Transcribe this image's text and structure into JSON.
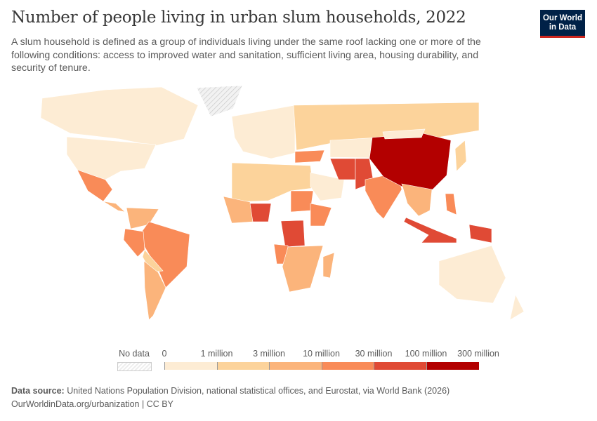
{
  "title": "Number of people living in urban slum households, 2022",
  "subtitle": "A slum household is defined as a group of individuals living under the same roof lacking one or more of the following conditions: access to improved water and sanitation, sufficient living area, housing durability, and security of tenure.",
  "logo": "Our World in Data",
  "legend": {
    "no_data": "No data",
    "ticks": [
      "0",
      "1 million",
      "3 million",
      "10 million",
      "30 million",
      "100 million",
      "300 million"
    ],
    "colors": [
      "#fdecd4",
      "#fcd39b",
      "#fbb47b",
      "#f98b58",
      "#e04a35",
      "#b30000"
    ],
    "no_data_color": "#e8e8e8"
  },
  "footer": {
    "source_label": "Data source:",
    "source": "United Nations Population Division, national statistical offices, and Eurostat, via World Bank (2026)",
    "url": "OurWorldinData.org/urbanization | CC BY"
  },
  "chart_data": {
    "type": "choropleth",
    "title": "Number of people living in urban slum households, 2022",
    "bins": [
      "0–1 million",
      "1–3 million",
      "3–10 million",
      "10–30 million",
      "30–100 million",
      "100–300 million"
    ],
    "regions": [
      {
        "region": "Canada",
        "bin": 0
      },
      {
        "region": "United States",
        "bin": 0
      },
      {
        "region": "Greenland",
        "bin": null
      },
      {
        "region": "Mexico",
        "bin": 3
      },
      {
        "region": "Central America",
        "bin": 2
      },
      {
        "region": "Colombia/Venezuela",
        "bin": 2
      },
      {
        "region": "Brazil",
        "bin": 3
      },
      {
        "region": "Peru",
        "bin": 3
      },
      {
        "region": "Bolivia/Paraguay",
        "bin": 1
      },
      {
        "region": "Argentina",
        "bin": 2
      },
      {
        "region": "Europe",
        "bin": 0
      },
      {
        "region": "Russia",
        "bin": 1
      },
      {
        "region": "North Africa",
        "bin": 1
      },
      {
        "region": "West Africa",
        "bin": 2
      },
      {
        "region": "Nigeria",
        "bin": 4
      },
      {
        "region": "Sudan",
        "bin": 3
      },
      {
        "region": "Ethiopia",
        "bin": 3
      },
      {
        "region": "DR Congo",
        "bin": 4
      },
      {
        "region": "Angola",
        "bin": 3
      },
      {
        "region": "Southern Africa",
        "bin": 2
      },
      {
        "region": "Madagascar",
        "bin": 2
      },
      {
        "region": "Saudi Arabia",
        "bin": 0
      },
      {
        "region": "Turkey",
        "bin": 3
      },
      {
        "region": "Iran",
        "bin": 4
      },
      {
        "region": "Pakistan",
        "bin": 4
      },
      {
        "region": "Central Asia",
        "bin": 0
      },
      {
        "region": "India",
        "bin": 3
      },
      {
        "region": "China",
        "bin": 5
      },
      {
        "region": "Mongolia",
        "bin": 0
      },
      {
        "region": "Southeast Asia",
        "bin": 2
      },
      {
        "region": "Philippines",
        "bin": 3
      },
      {
        "region": "Indonesia",
        "bin": 4
      },
      {
        "region": "Papua New Guinea",
        "bin": 4
      },
      {
        "region": "Japan",
        "bin": 1
      },
      {
        "region": "Australia",
        "bin": 0
      },
      {
        "region": "New Zealand",
        "bin": 0
      }
    ]
  }
}
